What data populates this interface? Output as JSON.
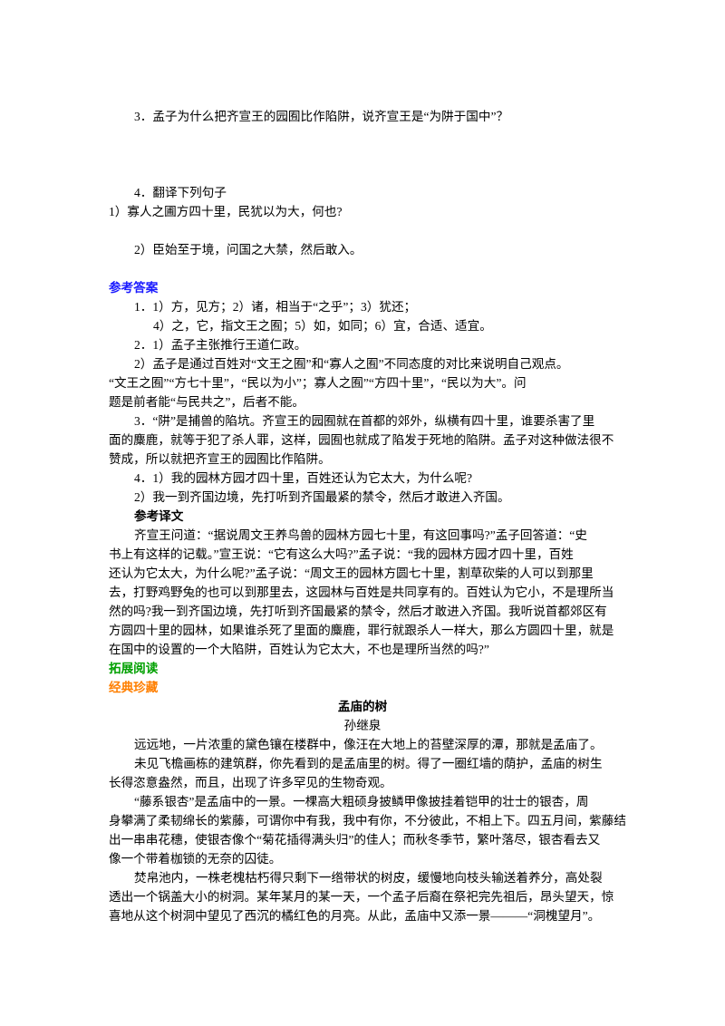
{
  "lines": [
    "3．孟子为什么把齐宣王的园囿比作陷阱，说齐宣王是“为阱于国中”？",
    "4．翻译下列句子",
    "1）寡人之圃方四十里，民犹以为大，何也?",
    "2）臣始至于境，问国之大禁，然后敢入。",
    "参考答案",
    "1．1）方，见方；2）诸，相当于“之乎”；3）犹还；",
    "4）之，它，指文王之囿；5）如，如同；6）宜，合适、适宜。",
    "2．1）孟子主张推行王道仁政。",
    "2）孟子是通过百姓对“文王之囿”和“寡人之囿”不同态度的对比来说明自己观点。",
    "“文王之囿”“方七十里”，“民以为小”；寡人之囿”“方四十里”，“民以为大”。问",
    "题是前者能“与民共之”，后者不能。",
    "3．“阱”是捕兽的陷坑。齐宣王的园囿就在首都的郊外，纵横有四十里，谁要杀害了里",
    "面的麋鹿，就等于犯了杀人罪，这样，园囿也就成了陷发于死地的陷阱。孟子对这种做法很不",
    "赞成，所以就把齐宣王的园囿比作陷阱。",
    "4．1）我的园林方园才四十里，百姓还认为它太大，为什么呢?",
    "2）我一到齐国边境，先打听到齐国最紧的禁令，然后才敢进入齐国。",
    "参考译文",
    "齐宣王问道：“据说周文王养鸟兽的园林方园七十里，有这回事吗?”孟子回答道：“史",
    "书上有这样的记载。”宣王说：“它有这么大吗?”孟子说：“我的园林方园才四十里，百姓",
    "还认为它太大，为什么呢?”孟子说：“周文王的园林方圆七十里，割草砍柴的人可以到那里",
    "去，打野鸡野兔的也可以到那里去，这园林与百姓是共同享有的。百姓认为它小，不是理所当",
    "然的吗?我一到齐国边境，先打听到齐国最紧的禁令，然后才敢进入齐国。我听说首都郊区有",
    "方圆四十里的园林，如果谁杀死了里面的麋鹿，罪行就跟杀人一样大，那么方圆四十里，就是",
    "在国中的设置的一个大陷阱，百姓认为它太大，不也是理所当然的吗?”",
    "拓展阅读",
    "经典珍藏",
    "孟庙的树",
    "孙继泉",
    "远远地，一片浓重的黛色镶在楼群中，像汪在大地上的苔壁深厚的潭，那就是孟庙了。",
    "未见飞檐画栋的建筑群，你先看到的是孟庙里的树。得了一圈红墙的荫护，孟庙的树生",
    "长得恣意盎然，而且，出现了许多罕见的生物奇观。",
    "“藤系银杏”是孟庙中的一景。一棵高大粗硕身披鳞甲像披挂着铠甲的壮士的银杏，周",
    "身攀满了柔韧绵长的紫藤，可谓你中有我，我中有你，不分彼此，不相上下。四五月间，紫藤结",
    "出一串串花穗，使银杏像个“菊花插得满头归”的佳人；而秋冬季节，繁叶落尽，银杏看去又",
    "像一个带着枷锁的无奈的囚徒。",
    "焚帛池内，一株老槐枯朽得只剩下一绺带状的树皮，缓慢地向枝头输送着养分，高处裂",
    "透出一个锅盖大小的树洞。某年某月的某一天，一个孟子后裔在祭祀完先祖后，昂头望天，惊",
    "喜地从这个树洞中望见了西沉的橘红色的月亮。从此，孟庙中又添一景———“洞槐望月”。"
  ]
}
